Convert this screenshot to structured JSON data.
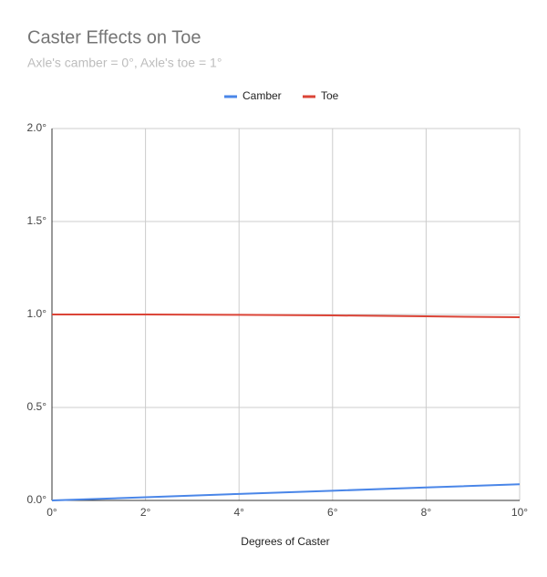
{
  "chart_data": {
    "type": "line",
    "title": "Caster Effects on Toe",
    "subtitle": "Axle's camber = 0°, Axle's toe = 1°",
    "x_label": "Degrees of Caster",
    "x": [
      0,
      2,
      4,
      6,
      8,
      10
    ],
    "series": [
      {
        "name": "Camber",
        "color": "#4a86e8",
        "values": [
          0,
          0.017,
          0.035,
          0.052,
          0.07,
          0.087
        ]
      },
      {
        "name": "Toe",
        "color": "#db4437",
        "values": [
          1.0,
          1.0,
          0.998,
          0.995,
          0.99,
          0.985
        ]
      }
    ],
    "xlim": [
      0,
      10
    ],
    "xticks": [
      {
        "value": 0,
        "label": "0°"
      },
      {
        "value": 2,
        "label": "2°"
      },
      {
        "value": 4,
        "label": "4°"
      },
      {
        "value": 6,
        "label": "6°"
      },
      {
        "value": 8,
        "label": "8°"
      },
      {
        "value": 10,
        "label": "10°"
      }
    ],
    "ylim": [
      0,
      2
    ],
    "yticks": [
      {
        "value": 0,
        "label": "0.0°"
      },
      {
        "value": 0.5,
        "label": "0.5°"
      },
      {
        "value": 1,
        "label": "1.0°"
      },
      {
        "value": 1.5,
        "label": "1.5°"
      },
      {
        "value": 2,
        "label": "2.0°"
      }
    ],
    "grid": true,
    "legend": "top"
  }
}
